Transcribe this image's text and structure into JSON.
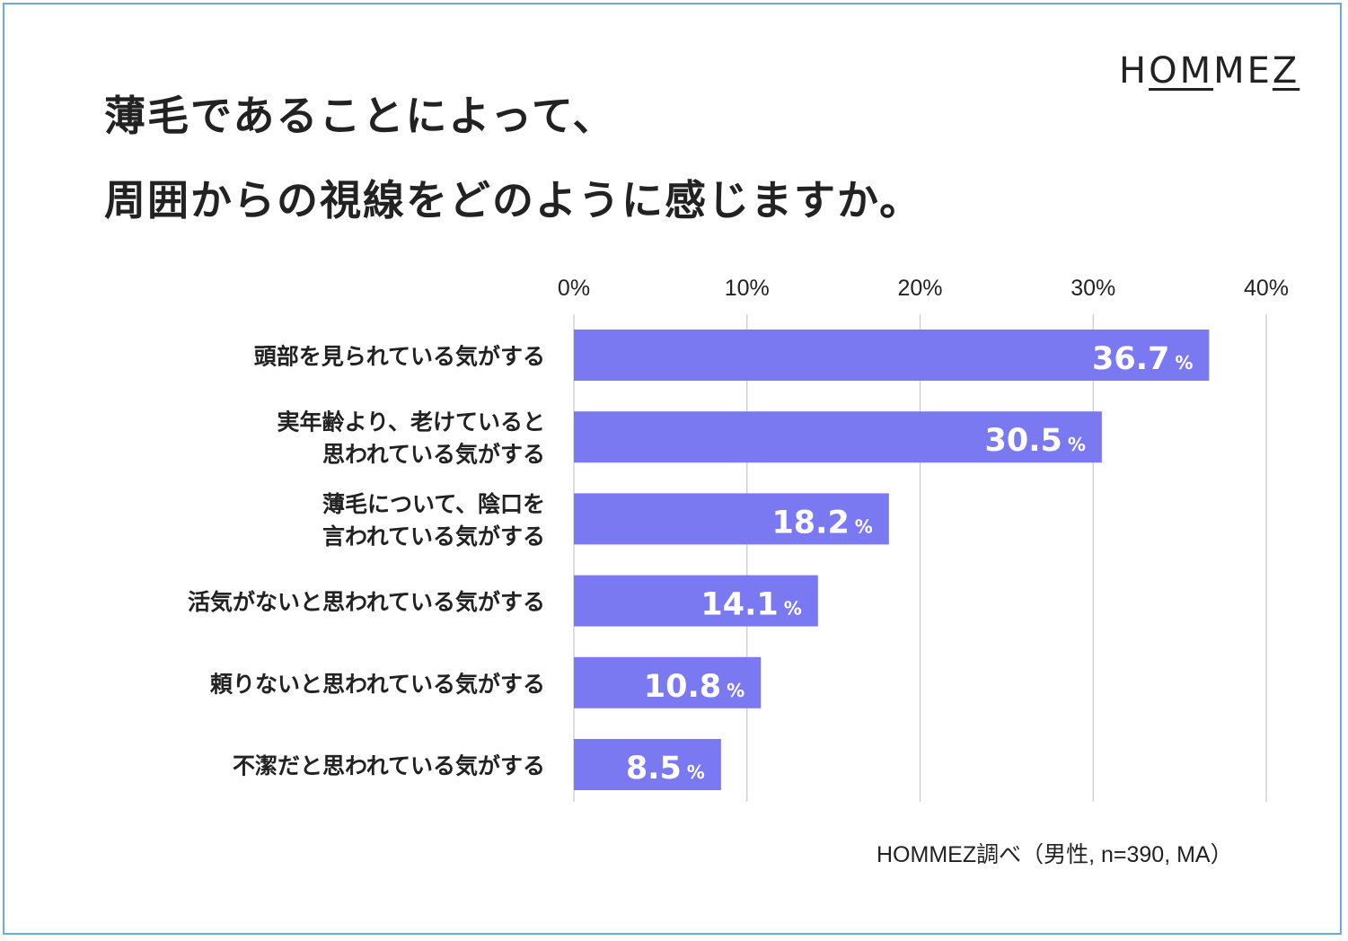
{
  "title_lines": [
    "薄毛であることによって、",
    "周囲からの視線をどのように感じますか。"
  ],
  "brand": {
    "pre": "H",
    "underlined": "OM",
    "mid": "ME",
    "underlined2": "Z"
  },
  "source": "HOMMEZ調べ（男性, n=390, MA）",
  "colors": {
    "bar": "#7b79f2",
    "grid": "#c8c8c8",
    "text": "#222222",
    "border": "#6fa9d8"
  },
  "chart_data": {
    "type": "bar",
    "orientation": "horizontal",
    "categories": [
      [
        "頭部を見られている気がする"
      ],
      [
        "実年齢より、老けていると",
        "思われている気がする"
      ],
      [
        "薄毛について、陰口を",
        "言われている気がする"
      ],
      [
        "活気がないと思われている気がする"
      ],
      [
        "頼りないと思われている気がする"
      ],
      [
        "不潔だと思われている気がする"
      ]
    ],
    "values": [
      36.7,
      30.5,
      18.2,
      14.1,
      10.8,
      8.5
    ],
    "value_labels": [
      "36.7",
      "30.5",
      "18.2",
      "14.1",
      "10.8",
      "8.5"
    ],
    "value_unit": "%",
    "xlim": [
      0,
      40
    ],
    "ticks": [
      "0%",
      "10%",
      "20%",
      "30%",
      "40%"
    ],
    "grid": true
  }
}
